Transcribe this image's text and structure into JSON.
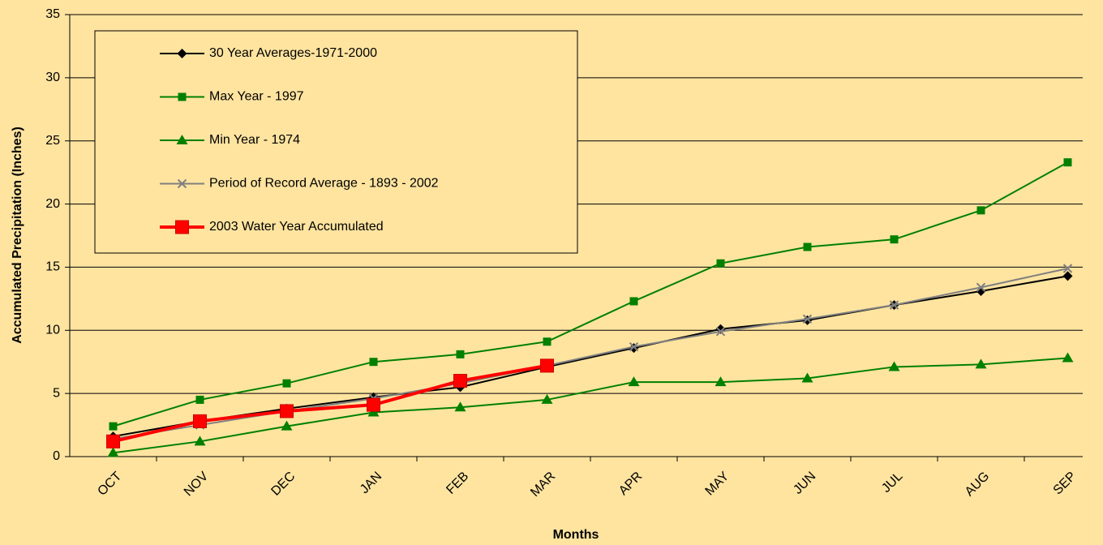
{
  "chart_data": {
    "type": "line",
    "x_label": "Months",
    "y_label": "Accumulated Precipitation (Inches)",
    "categories": [
      "OCT",
      "NOV",
      "DEC",
      "JAN",
      "FEB",
      "MAR",
      "APR",
      "MAY",
      "JUN",
      "JUL",
      "AUG",
      "SEP"
    ],
    "series": [
      {
        "name": "30 Year Averages-1971-2000",
        "color": "#000000",
        "marker": "diamond",
        "values": [
          1.6,
          2.8,
          3.8,
          4.7,
          5.5,
          7.1,
          8.6,
          10.1,
          10.8,
          12.0,
          13.1,
          14.3
        ]
      },
      {
        "name": "Max Year - 1997",
        "color": "#008000",
        "marker": "square",
        "values": [
          2.4,
          4.5,
          5.8,
          7.5,
          8.1,
          9.1,
          12.3,
          15.3,
          16.6,
          17.2,
          19.5,
          23.3
        ]
      },
      {
        "name": "Min Year - 1974",
        "color": "#008000",
        "marker": "triangle",
        "values": [
          0.3,
          1.2,
          2.4,
          3.5,
          3.9,
          4.5,
          5.9,
          5.9,
          6.2,
          7.1,
          7.3,
          7.8
        ]
      },
      {
        "name": "Period of Record Average - 1893 - 2002",
        "color": "#808080",
        "marker": "x",
        "values": [
          1.4,
          2.5,
          3.6,
          4.6,
          5.8,
          7.2,
          8.7,
          9.9,
          10.9,
          12.0,
          13.4,
          14.9
        ]
      },
      {
        "name": "2003 Water Year Accumulated",
        "color": "#ff0000",
        "marker": "bigsquare",
        "values": [
          1.2,
          2.8,
          3.6,
          4.1,
          6.0,
          7.2,
          null,
          null,
          null,
          null,
          null,
          null
        ]
      }
    ],
    "ylim": [
      0,
      35
    ],
    "yticks": [
      0,
      5,
      10,
      15,
      20,
      25,
      30,
      35
    ],
    "grid": true
  }
}
